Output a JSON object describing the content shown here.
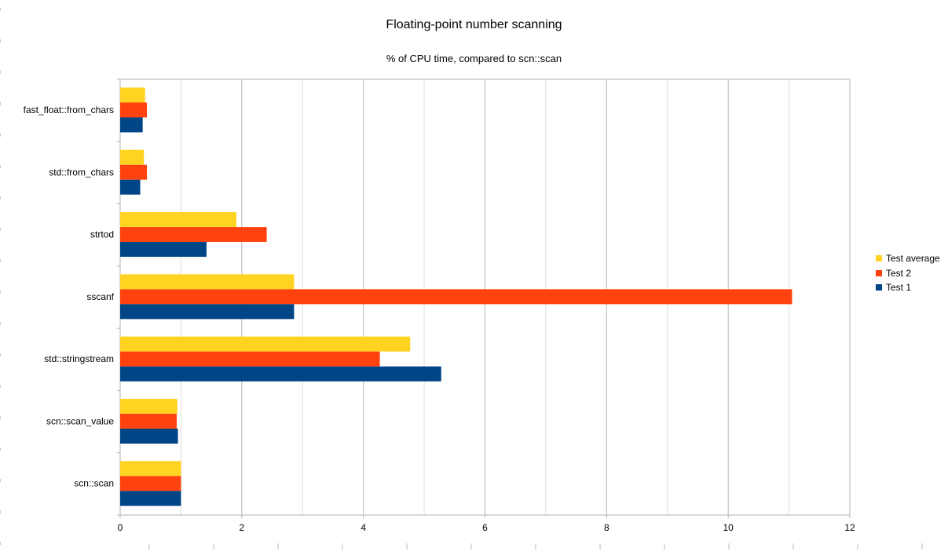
{
  "chart_data": {
    "type": "bar",
    "orientation": "horizontal",
    "title": "Floating-point number scanning",
    "subtitle": "% of CPU time, compared to scn::scan",
    "categories": [
      "fast_float::from_chars",
      "std::from_chars",
      "strtod",
      "sscanf",
      "std::stringstream",
      "scn::scan_value",
      "scn::scan"
    ],
    "series": [
      {
        "name": "Test average",
        "color": "#ffd320",
        "values": [
          0.41,
          0.39,
          1.91,
          2.86,
          4.77,
          0.94,
          1.0
        ]
      },
      {
        "name": "Test 2",
        "color": "#ff420e",
        "values": [
          0.44,
          0.44,
          2.41,
          11.05,
          4.27,
          0.93,
          1.0
        ]
      },
      {
        "name": "Test 1",
        "color": "#004586",
        "values": [
          0.37,
          0.33,
          1.42,
          2.86,
          5.28,
          0.95,
          1.0
        ]
      }
    ],
    "xlim": [
      0,
      12
    ],
    "xticks": [
      "0",
      "2",
      "4",
      "6",
      "8",
      "10",
      "12"
    ],
    "grid": true,
    "legend": "right"
  }
}
